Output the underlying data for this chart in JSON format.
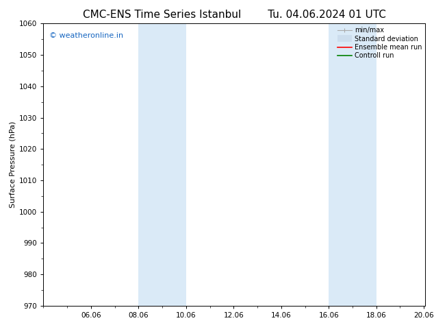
{
  "title": "CMC-ENS Time Series Istanbul",
  "title2": "Tu. 04.06.2024 01 UTC",
  "ylabel": "Surface Pressure (hPa)",
  "ylim": [
    970,
    1060
  ],
  "yticks": [
    970,
    980,
    990,
    1000,
    1010,
    1020,
    1030,
    1040,
    1050,
    1060
  ],
  "xlim_start": 4.0,
  "xlim_end": 20.06,
  "xtick_labels": [
    "06.06",
    "08.06",
    "10.06",
    "12.06",
    "14.06",
    "16.06",
    "18.06",
    "20.06"
  ],
  "xtick_positions": [
    6.0,
    8.0,
    10.0,
    12.0,
    14.0,
    16.0,
    18.0,
    20.0
  ],
  "shaded_bands": [
    {
      "x_start": 8.0,
      "x_end": 10.0
    },
    {
      "x_start": 16.0,
      "x_end": 18.0
    }
  ],
  "shaded_color": "#daeaf7",
  "watermark_text": "© weatheronline.in",
  "watermark_color": "#1565C0",
  "watermark_fontsize": 8,
  "title_fontsize": 11,
  "axis_label_fontsize": 8,
  "tick_fontsize": 7.5,
  "legend_fontsize": 7,
  "background_color": "#ffffff",
  "plot_bg_color": "#ffffff",
  "legend_gray_line": "#aaaaaa",
  "legend_stddev_color": "#ccdded",
  "legend_mean_color": "red",
  "legend_control_color": "green"
}
